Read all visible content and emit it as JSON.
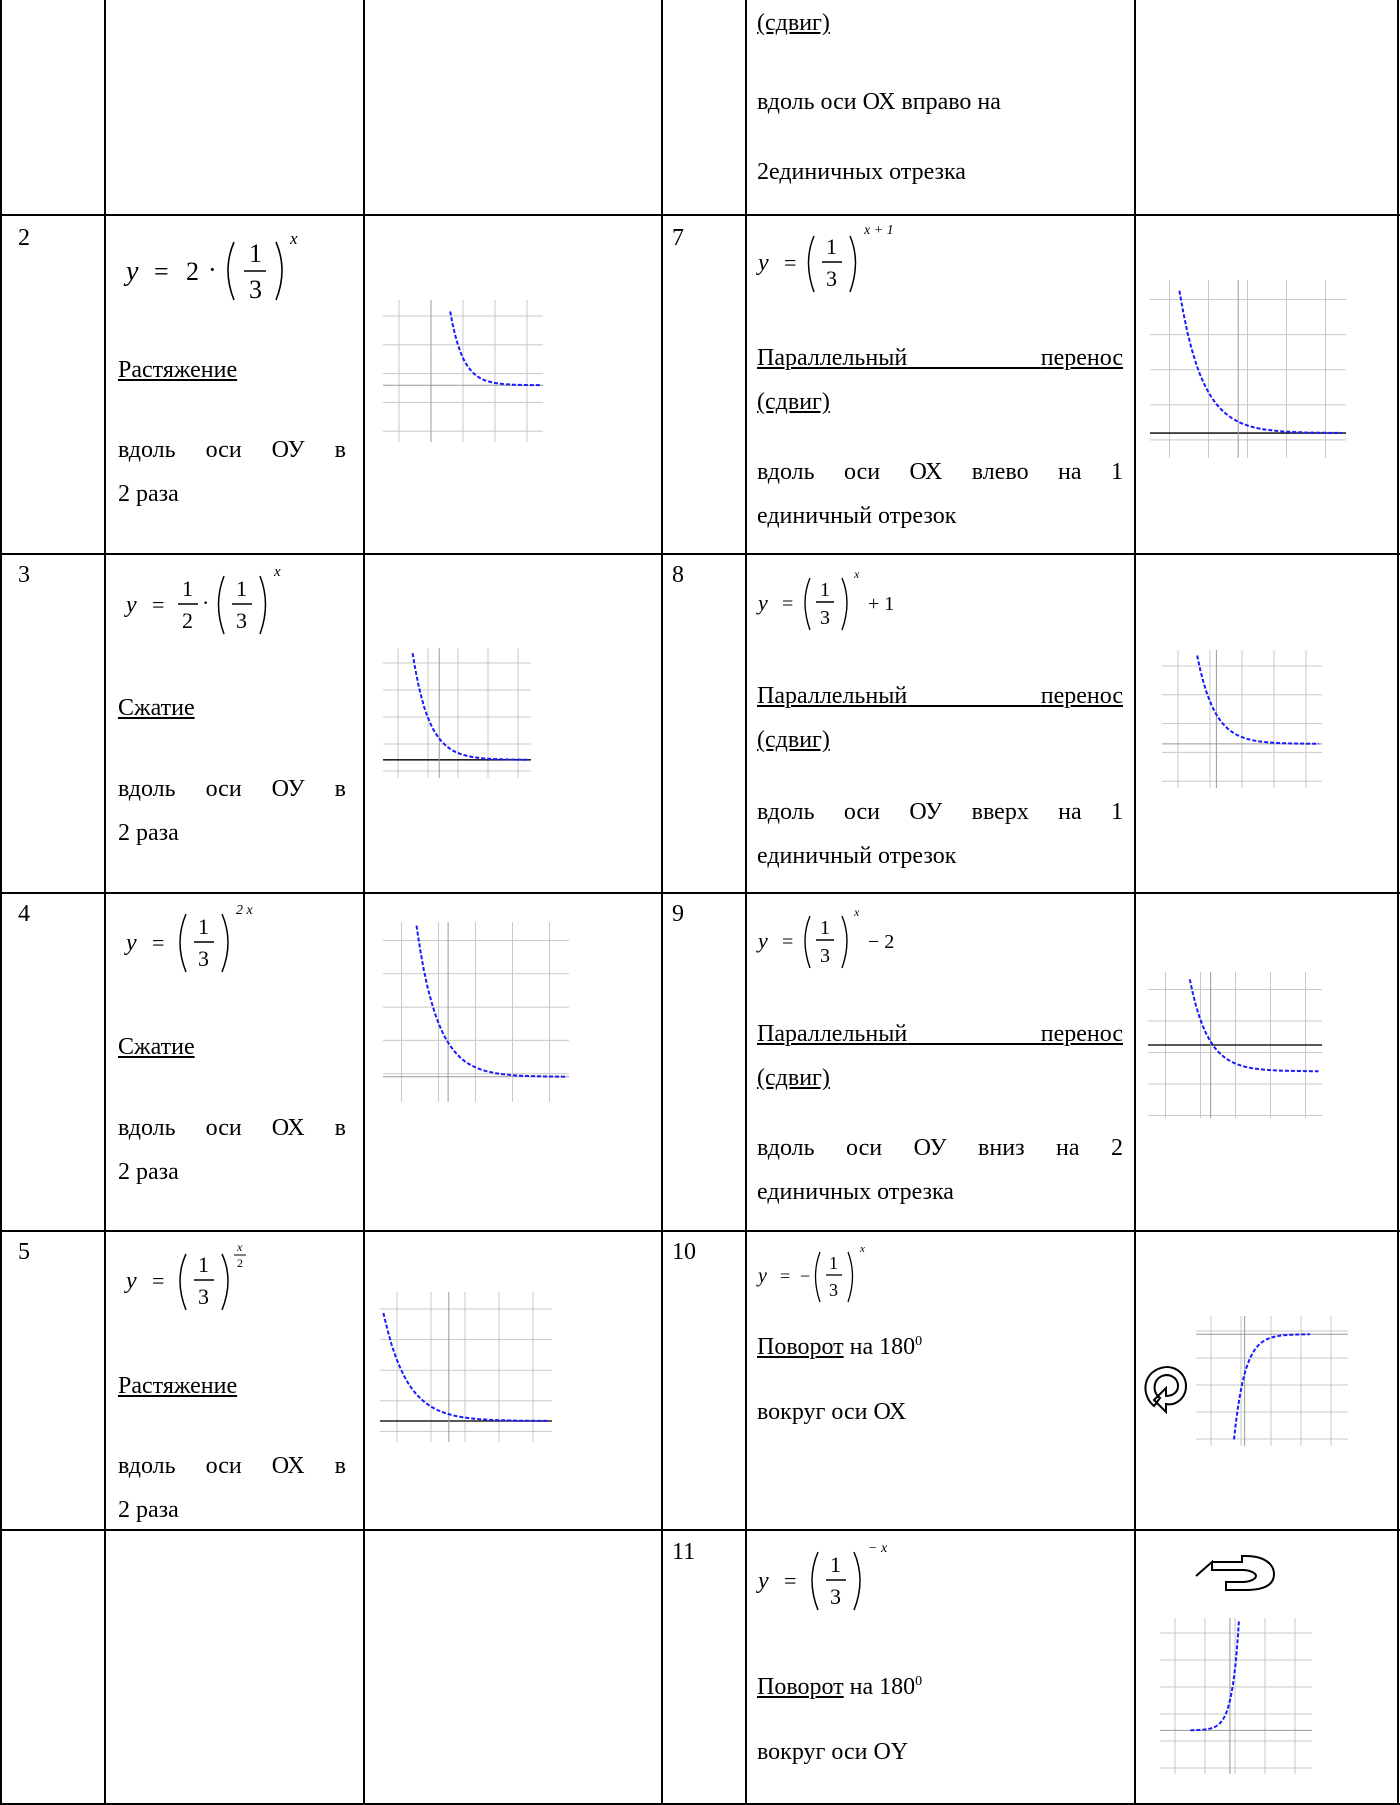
{
  "rows": {
    "r0": {
      "right_label": "(сдвиг)",
      "right_desc1": "вдоль оси ОХ вправо на",
      "right_desc2": "2единичных отрезка"
    },
    "r2": {
      "left_num": "2",
      "left_label": "Растяжение",
      "left_desc1": "вдоль оси ОУ в",
      "left_desc2": "2 раза",
      "right_num": "7",
      "right_label1a": "Параллельный",
      "right_label1b": "перенос",
      "right_label2": "(сдвиг)",
      "right_desc1": "вдоль оси ОХ влево на 1",
      "right_desc2": "единичный отрезок"
    },
    "r3": {
      "left_num": "3",
      "left_label": "Сжатие",
      "left_desc1": "вдоль оси ОУ в",
      "left_desc2": "2 раза",
      "right_num": "8",
      "right_label1a": "Параллельный",
      "right_label1b": "перенос",
      "right_label2": "(сдвиг)",
      "right_desc1": "вдоль оси ОУ вверх на 1",
      "right_desc2": "единичный отрезок"
    },
    "r4": {
      "left_num": "4",
      "left_label": "Сжатие",
      "left_desc1": "вдоль оси ОХ в",
      "left_desc2": "2 раза",
      "right_num": "9",
      "right_label1a": "Параллельный",
      "right_label1b": "перенос",
      "right_label2": "(сдвиг)",
      "right_desc1": "вдоль оси ОУ вниз на 2",
      "right_desc2": "единичных отрезка"
    },
    "r5": {
      "left_num": "5",
      "left_label": "Растяжение",
      "left_desc1": "вдоль оси ОХ в",
      "left_desc2": "2 раза",
      "right_num": "10",
      "right_label": "Поворот",
      "right_label_rest": " на 180",
      "right_sup": "0",
      "right_desc": "вокруг оси ОХ"
    },
    "r6": {
      "right_num": "11",
      "right_label": "Поворот",
      "right_label_rest": " на 180",
      "right_sup": "0",
      "right_desc": "вокруг оси ОY"
    }
  },
  "formulas": {
    "f2": {
      "y": "y",
      "eq": "=",
      "coef": "2",
      "dot": "·",
      "num": "1",
      "den": "3",
      "exp": "x"
    },
    "f3": {
      "y": "y",
      "eq": "=",
      "cnum": "1",
      "cden": "2",
      "dot": "·",
      "num": "1",
      "den": "3",
      "exp": "x"
    },
    "f4": {
      "y": "y",
      "eq": "=",
      "num": "1",
      "den": "3",
      "exp": "2 x"
    },
    "f5": {
      "y": "y",
      "eq": "=",
      "num": "1",
      "den": "3",
      "enum": "x",
      "eden": "2"
    },
    "f7": {
      "y": "y",
      "eq": "=",
      "num": "1",
      "den": "3",
      "exp": "x + 1"
    },
    "f8": {
      "y": "y",
      "eq": "=",
      "num": "1",
      "den": "3",
      "exp": "x",
      "tail": "+ 1"
    },
    "f9": {
      "y": "y",
      "eq": "=",
      "num": "1",
      "den": "3",
      "exp": "x",
      "tail": "− 2"
    },
    "f10": {
      "y": "y",
      "eq": "=",
      "minus": "−",
      "num": "1",
      "den": "3",
      "exp": "x"
    },
    "f11": {
      "y": "y",
      "eq": "=",
      "num": "1",
      "den": "3",
      "exp": "− x"
    }
  },
  "colors": {
    "curve": "#1a1aff",
    "grid": "#c8c8c8",
    "axis": "#222222",
    "border": "#000000"
  },
  "icons": {
    "rotate_ox": "rotate-arrow-icon",
    "rotate_oy": "rotate-arrow-icon"
  }
}
